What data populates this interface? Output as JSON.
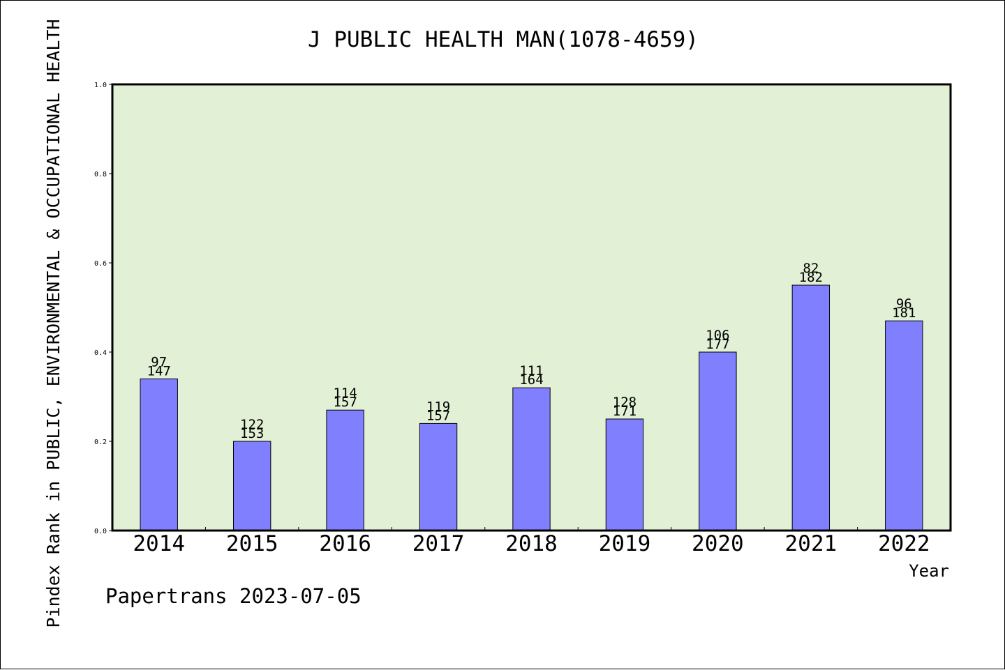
{
  "chart_data": {
    "type": "bar",
    "title": "J PUBLIC HEALTH MAN(1078-4659)",
    "xlabel": "Year",
    "ylabel": "Pindex Rank in PUBLIC, ENVIRONMENTAL & OCCUPATIONAL HEALTH",
    "categories": [
      "2014",
      "2015",
      "2016",
      "2017",
      "2018",
      "2019",
      "2020",
      "2021",
      "2022"
    ],
    "values": [
      0.34,
      0.2,
      0.27,
      0.24,
      0.32,
      0.25,
      0.4,
      0.55,
      0.47
    ],
    "rank_labels": [
      "97",
      "122",
      "114",
      "119",
      "111",
      "128",
      "106",
      "82",
      "96"
    ],
    "total_labels": [
      "147",
      "153",
      "157",
      "157",
      "164",
      "171",
      "177",
      "182",
      "181"
    ],
    "ylim": [
      0,
      1.0
    ],
    "yticks": [
      "0.0",
      "0.2",
      "0.4",
      "0.6",
      "0.8",
      "1.0"
    ],
    "grid": false,
    "colors": {
      "bar": "#8080ff",
      "plot_background": "#e2f0d6",
      "axis": "#000000"
    }
  },
  "footer": {
    "credit": "Papertrans 2023-07-05"
  }
}
